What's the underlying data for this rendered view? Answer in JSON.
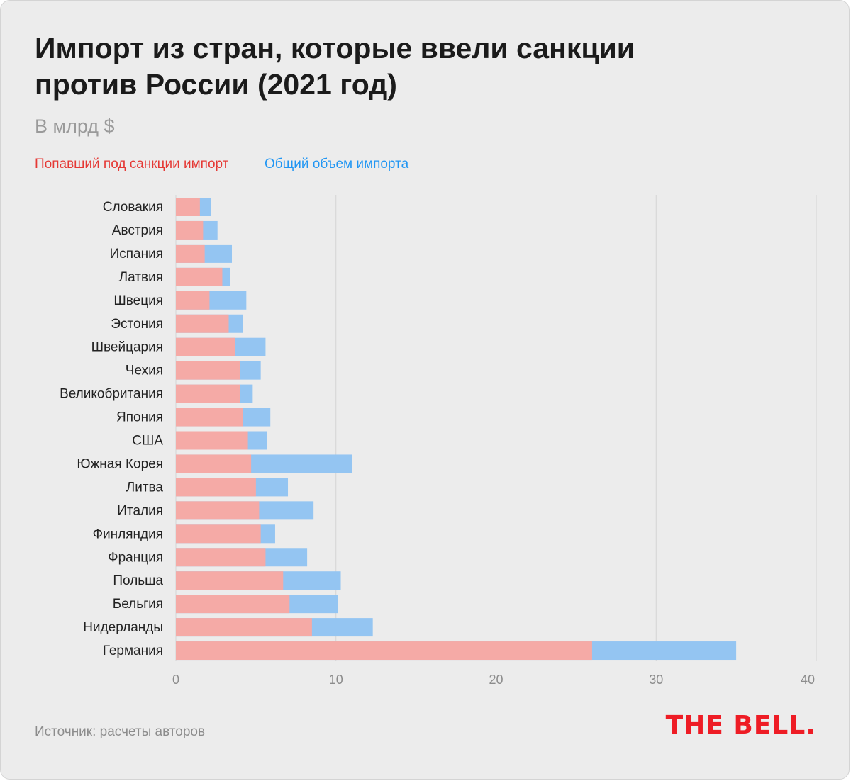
{
  "title": "Импорт из стран, которые ввели санкции против России (2021 год)",
  "subtitle": "В млрд $",
  "legend": {
    "sanctioned": "Попавший под санкции импорт",
    "total": "Общий объем импорта"
  },
  "source": "Источник: расчеты авторов",
  "logo": "THE BELL.",
  "colors": {
    "background": "#ececec",
    "sanctioned_bar": "#f5aaa6",
    "total_bar": "#94c5f2",
    "sanctioned_text": "#e53935",
    "total_text": "#2196f3",
    "logo": "#ee1c25"
  },
  "chart_data": {
    "type": "bar",
    "orientation": "horizontal",
    "stacked": false,
    "title": "Импорт из стран, которые ввели санкции против России (2021 год)",
    "xlabel": "",
    "ylabel": "",
    "unit": "В млрд $",
    "xlim": [
      0,
      40
    ],
    "xticks": [
      0,
      10,
      20,
      30,
      40
    ],
    "grid": true,
    "categories": [
      "Словакия",
      "Австрия",
      "Испания",
      "Латвия",
      "Швеция",
      "Эстония",
      "Швейцария",
      "Чехия",
      "Великобритания",
      "Япония",
      "США",
      "Южная Корея",
      "Литва",
      "Италия",
      "Финляндия",
      "Франция",
      "Польша",
      "Бельгия",
      "Нидерланды",
      "Германия"
    ],
    "series": [
      {
        "name": "Общий объем импорта",
        "values": [
          2.2,
          2.6,
          3.5,
          3.4,
          4.4,
          4.2,
          5.6,
          5.3,
          4.8,
          5.9,
          5.7,
          11.0,
          7.0,
          8.6,
          6.2,
          8.2,
          10.3,
          10.1,
          12.3,
          35.0
        ]
      },
      {
        "name": "Попавший под санкции импорт",
        "values": [
          1.5,
          1.7,
          1.8,
          2.9,
          2.1,
          3.3,
          3.7,
          4.0,
          4.0,
          4.2,
          4.5,
          4.7,
          5.0,
          5.2,
          5.3,
          5.6,
          6.7,
          7.1,
          8.5,
          26.0
        ]
      }
    ]
  }
}
